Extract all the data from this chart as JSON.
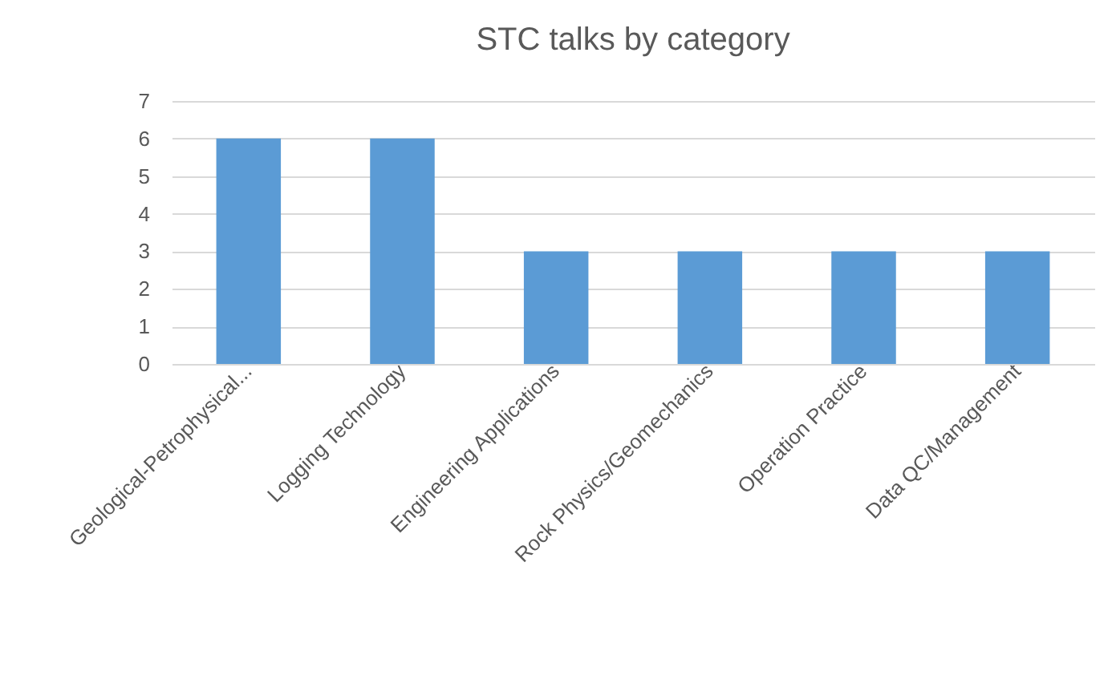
{
  "chart_data": {
    "type": "bar",
    "title": "STC talks by category",
    "categories": [
      "Geological-Petrophysical...",
      "Logging Technology",
      "Engineering Applications",
      "Rock Physics/Geomechanics",
      "Operation Practice",
      "Data QC/Management"
    ],
    "values": [
      6,
      6,
      3,
      3,
      3,
      3
    ],
    "color": "#5b9bd5",
    "ylim": [
      0,
      7
    ],
    "yticks": [
      0,
      1,
      2,
      3,
      4,
      5,
      6,
      7
    ],
    "grid": "y"
  }
}
